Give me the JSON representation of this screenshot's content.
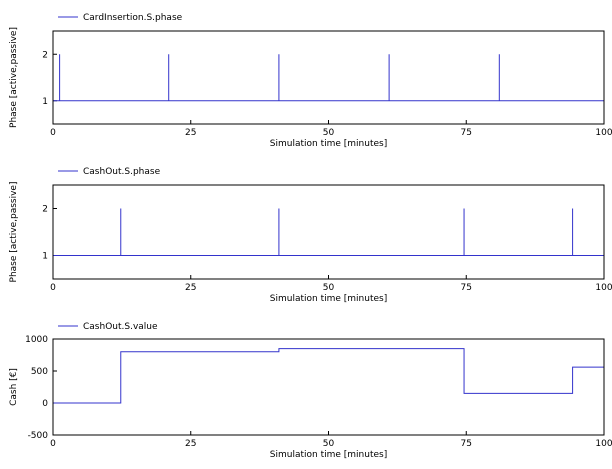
{
  "colors": {
    "line": "#3333cc",
    "axis": "#000000",
    "background": "#ffffff"
  },
  "chart_data": [
    {
      "type": "line",
      "series": [
        {
          "name": "CardInsertion.S.phase",
          "x": [
            0,
            1.2,
            1.2,
            1.2,
            21,
            21,
            21,
            41,
            41,
            41,
            61,
            61,
            61,
            81,
            81,
            81,
            100
          ],
          "y": [
            1,
            1,
            2,
            1,
            1,
            2,
            1,
            1,
            2,
            1,
            1,
            2,
            1,
            1,
            2,
            1,
            1
          ]
        }
      ],
      "xlabel": "Simulation time [minutes]",
      "ylabel": "Phase [active,passive]",
      "xlim": [
        0,
        100
      ],
      "ylim": [
        0.5,
        2.5
      ],
      "xticks": [
        0,
        25,
        50,
        75,
        100
      ],
      "yticks": [
        1,
        2
      ],
      "grid": false,
      "legend": "top-left"
    },
    {
      "type": "line",
      "series": [
        {
          "name": "CashOut.S.phase",
          "x": [
            0,
            12.3,
            12.3,
            12.3,
            41,
            41,
            41,
            74.6,
            74.6,
            74.6,
            94.3,
            94.3,
            94.3,
            100
          ],
          "y": [
            1,
            1,
            2,
            1,
            1,
            2,
            1,
            1,
            2,
            1,
            1,
            2,
            1,
            1
          ]
        }
      ],
      "xlabel": "Simulation time [minutes]",
      "ylabel": "Phase [active,passive]",
      "xlim": [
        0,
        100
      ],
      "ylim": [
        0.5,
        2.5
      ],
      "xticks": [
        0,
        25,
        50,
        75,
        100
      ],
      "yticks": [
        1,
        2
      ],
      "grid": false,
      "legend": "top-left"
    },
    {
      "type": "line",
      "series": [
        {
          "name": "CashOut.S.value",
          "x": [
            0,
            12.3,
            12.3,
            41,
            41,
            74.6,
            74.6,
            94.3,
            94.3,
            100
          ],
          "y": [
            0,
            0,
            800,
            800,
            850,
            850,
            150,
            150,
            560,
            560
          ]
        }
      ],
      "xlabel": "Simulation time [minutes]",
      "ylabel": "Cash [€]",
      "xlim": [
        0,
        100
      ],
      "ylim": [
        -500,
        1000
      ],
      "xticks": [
        0,
        25,
        50,
        75,
        100
      ],
      "yticks": [
        -500,
        0,
        500,
        1000
      ],
      "grid": false,
      "legend": "top-left"
    }
  ]
}
